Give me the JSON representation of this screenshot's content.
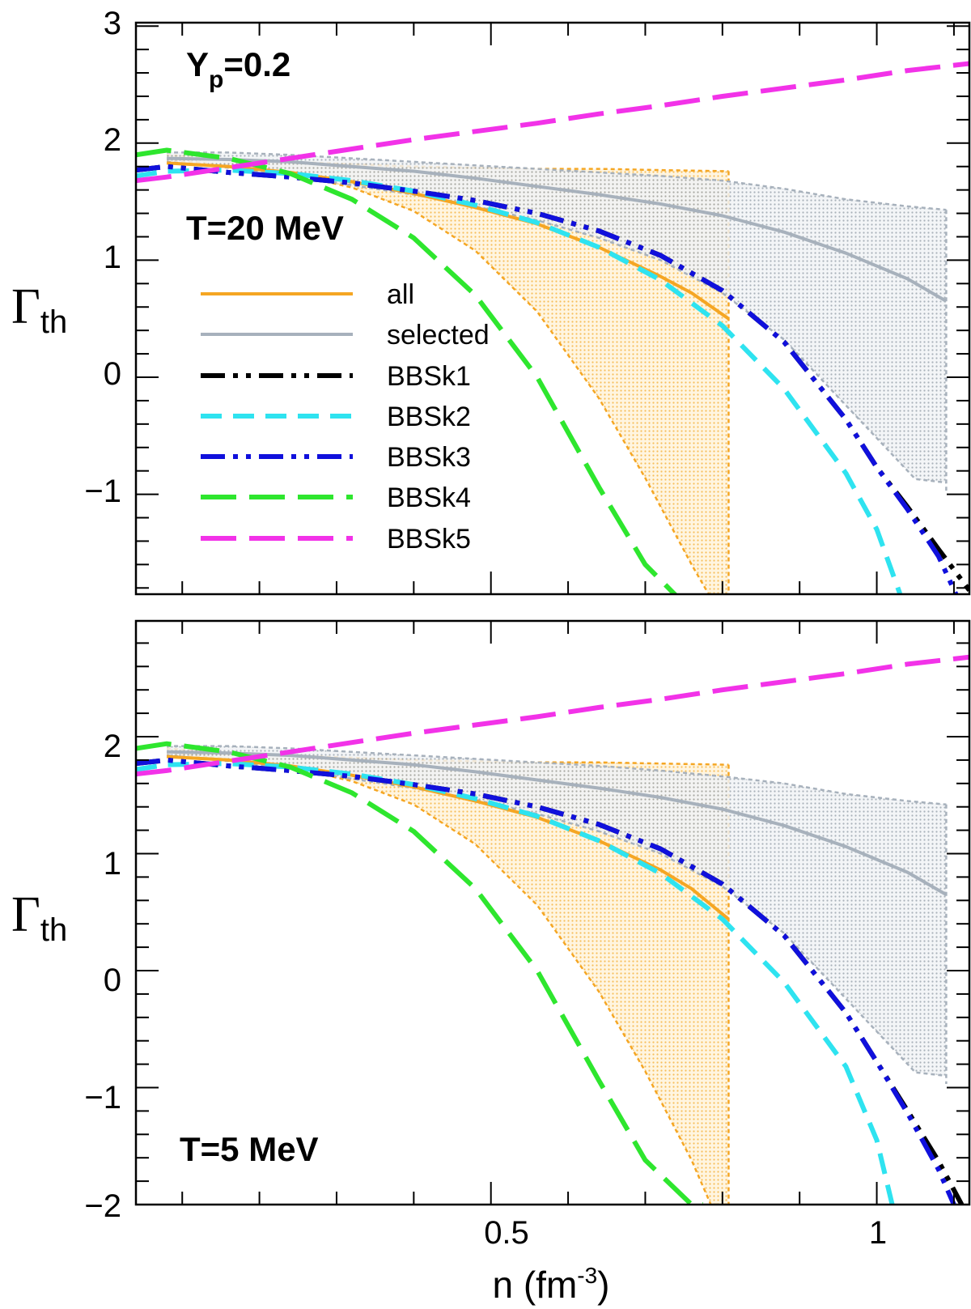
{
  "chart_data": [
    {
      "type": "line",
      "panel": "top",
      "annotations": {
        "yp_main": "Y",
        "yp_sub": "p",
        "yp_value": "=0.2",
        "temperature": "T=20 MeV"
      },
      "ylabel": {
        "main": "Γ",
        "sub": "th"
      },
      "xlabel": "",
      "xlim": [
        0.04,
        1.12
      ],
      "ylim": [
        -2,
        3
      ],
      "yticks": [
        "3",
        "2",
        "1",
        "0",
        "−1"
      ],
      "xticks": [],
      "bands": [
        {
          "name": "all",
          "color": "#f5a623",
          "upper": [
            [
              0.08,
              1.9
            ],
            [
              0.16,
              1.86
            ],
            [
              0.24,
              1.84
            ],
            [
              0.32,
              1.82
            ],
            [
              0.4,
              1.8
            ],
            [
              0.48,
              1.79
            ],
            [
              0.56,
              1.78
            ],
            [
              0.64,
              1.78
            ],
            [
              0.72,
              1.77
            ],
            [
              0.808,
              1.76
            ]
          ],
          "lower": [
            [
              0.08,
              1.86
            ],
            [
              0.16,
              1.81
            ],
            [
              0.24,
              1.74
            ],
            [
              0.32,
              1.62
            ],
            [
              0.4,
              1.42
            ],
            [
              0.48,
              1.08
            ],
            [
              0.56,
              0.56
            ],
            [
              0.64,
              -0.18
            ],
            [
              0.7,
              -0.86
            ],
            [
              0.76,
              -1.6
            ],
            [
              0.795,
              -2.0
            ],
            [
              0.808,
              -2.0
            ]
          ]
        },
        {
          "name": "selected",
          "color": "#a7b1bc",
          "upper": [
            [
              0.08,
              1.92
            ],
            [
              0.16,
              1.92
            ],
            [
              0.24,
              1.9
            ],
            [
              0.32,
              1.87
            ],
            [
              0.4,
              1.84
            ],
            [
              0.48,
              1.81
            ],
            [
              0.56,
              1.78
            ],
            [
              0.64,
              1.75
            ],
            [
              0.72,
              1.72
            ],
            [
              0.8,
              1.68
            ],
            [
              0.88,
              1.61
            ],
            [
              0.96,
              1.52
            ],
            [
              1.04,
              1.46
            ],
            [
              1.09,
              1.43
            ]
          ],
          "lower": [
            [
              0.08,
              1.84
            ],
            [
              0.16,
              1.79
            ],
            [
              0.24,
              1.73
            ],
            [
              0.32,
              1.64
            ],
            [
              0.4,
              1.56
            ],
            [
              0.48,
              1.46
            ],
            [
              0.56,
              1.34
            ],
            [
              0.64,
              1.19
            ],
            [
              0.72,
              1.0
            ],
            [
              0.8,
              0.72
            ],
            [
              0.88,
              0.32
            ],
            [
              0.96,
              -0.24
            ],
            [
              1.02,
              -0.66
            ],
            [
              1.05,
              -0.87
            ],
            [
              1.09,
              -0.9
            ]
          ]
        }
      ],
      "series": [
        {
          "name": "all",
          "color": "#f5a623",
          "style": "solid",
          "x": [
            0.08,
            0.16,
            0.24,
            0.32,
            0.4,
            0.48,
            0.56,
            0.64,
            0.72,
            0.76,
            0.808
          ],
          "y": [
            1.83,
            1.8,
            1.75,
            1.67,
            1.57,
            1.45,
            1.31,
            1.11,
            0.86,
            0.72,
            0.5
          ]
        },
        {
          "name": "selected",
          "color": "#a7b1bc",
          "style": "solid",
          "x": [
            0.08,
            0.16,
            0.24,
            0.32,
            0.4,
            0.48,
            0.56,
            0.64,
            0.72,
            0.8,
            0.88,
            0.96,
            1.04,
            1.09
          ],
          "y": [
            1.87,
            1.86,
            1.84,
            1.8,
            1.76,
            1.7,
            1.63,
            1.56,
            1.48,
            1.38,
            1.24,
            1.06,
            0.84,
            0.65
          ]
        },
        {
          "name": "BBSk1",
          "color": "#000000",
          "style": "dash-dot-dot",
          "x": [
            0.04,
            0.08,
            0.16,
            0.24,
            0.32,
            0.4,
            0.48,
            0.56,
            0.64,
            0.72,
            0.8,
            0.88,
            0.96,
            1.0,
            1.04,
            1.08,
            1.12
          ],
          "y": [
            1.77,
            1.8,
            1.75,
            1.71,
            1.66,
            1.59,
            1.51,
            1.4,
            1.25,
            1.04,
            0.74,
            0.3,
            -0.36,
            -0.77,
            -1.11,
            -1.47,
            -1.82
          ]
        },
        {
          "name": "BBSk2",
          "color": "#2ee3f0",
          "style": "dashed",
          "x": [
            0.04,
            0.08,
            0.16,
            0.24,
            0.32,
            0.4,
            0.48,
            0.56,
            0.64,
            0.72,
            0.8,
            0.88,
            0.96,
            1.0,
            1.03
          ],
          "y": [
            1.72,
            1.76,
            1.77,
            1.74,
            1.68,
            1.59,
            1.47,
            1.32,
            1.11,
            0.83,
            0.44,
            -0.1,
            -0.82,
            -1.3,
            -1.85
          ]
        },
        {
          "name": "BBSk3",
          "color": "#1010dc",
          "style": "dash-dot-dot",
          "x": [
            0.04,
            0.08,
            0.16,
            0.24,
            0.32,
            0.4,
            0.48,
            0.56,
            0.64,
            0.72,
            0.8,
            0.88,
            0.96,
            1.0,
            1.04,
            1.08,
            1.11
          ],
          "y": [
            1.77,
            1.8,
            1.75,
            1.71,
            1.66,
            1.59,
            1.51,
            1.4,
            1.25,
            1.04,
            0.74,
            0.3,
            -0.36,
            -0.77,
            -1.13,
            -1.53,
            -1.96
          ]
        },
        {
          "name": "BBSk4",
          "color": "#2ee62e",
          "style": "long-dash",
          "x": [
            0.04,
            0.08,
            0.16,
            0.24,
            0.32,
            0.4,
            0.48,
            0.56,
            0.64,
            0.7,
            0.76,
            0.782
          ],
          "y": [
            1.9,
            1.94,
            1.87,
            1.74,
            1.52,
            1.19,
            0.7,
            0.0,
            -0.94,
            -1.6,
            -2.0,
            -2.0
          ]
        },
        {
          "name": "BBSk5",
          "color": "#f232e8",
          "style": "long-dash",
          "x": [
            0.04,
            0.08,
            0.16,
            0.24,
            0.32,
            0.4,
            0.48,
            0.56,
            0.64,
            0.72,
            0.8,
            0.88,
            0.96,
            1.04,
            1.12
          ],
          "y": [
            1.68,
            1.71,
            1.79,
            1.87,
            1.95,
            2.03,
            2.1,
            2.17,
            2.25,
            2.32,
            2.4,
            2.47,
            2.54,
            2.62,
            2.68
          ]
        }
      ]
    },
    {
      "type": "line",
      "panel": "bottom",
      "annotations": {
        "temperature": "T=5 MeV"
      },
      "ylabel": {
        "main": "Γ",
        "sub": "th"
      },
      "xlabel": {
        "main": "n (fm",
        "sup": "-3",
        "close": ")"
      },
      "xlim": [
        0.04,
        1.12
      ],
      "ylim": [
        -2,
        3
      ],
      "yticks": [
        "2",
        "1",
        "0",
        "−1",
        "−2"
      ],
      "xticks": [
        "0.5",
        "1"
      ],
      "bands": [
        {
          "name": "all",
          "color": "#f5a623",
          "upper": [
            [
              0.08,
              1.9
            ],
            [
              0.16,
              1.86
            ],
            [
              0.24,
              1.84
            ],
            [
              0.32,
              1.82
            ],
            [
              0.4,
              1.8
            ],
            [
              0.48,
              1.79
            ],
            [
              0.56,
              1.78
            ],
            [
              0.64,
              1.78
            ],
            [
              0.72,
              1.77
            ],
            [
              0.808,
              1.76
            ]
          ],
          "lower": [
            [
              0.08,
              1.86
            ],
            [
              0.16,
              1.81
            ],
            [
              0.24,
              1.74
            ],
            [
              0.32,
              1.62
            ],
            [
              0.4,
              1.42
            ],
            [
              0.48,
              1.08
            ],
            [
              0.56,
              0.56
            ],
            [
              0.64,
              -0.18
            ],
            [
              0.7,
              -0.86
            ],
            [
              0.76,
              -1.62
            ],
            [
              0.785,
              -2.0
            ],
            [
              0.808,
              -2.0
            ]
          ]
        },
        {
          "name": "selected",
          "color": "#a7b1bc",
          "upper": [
            [
              0.08,
              1.92
            ],
            [
              0.16,
              1.92
            ],
            [
              0.24,
              1.9
            ],
            [
              0.32,
              1.87
            ],
            [
              0.4,
              1.84
            ],
            [
              0.48,
              1.81
            ],
            [
              0.56,
              1.78
            ],
            [
              0.64,
              1.75
            ],
            [
              0.72,
              1.71
            ],
            [
              0.8,
              1.66
            ],
            [
              0.88,
              1.6
            ],
            [
              0.96,
              1.51
            ],
            [
              1.04,
              1.45
            ],
            [
              1.09,
              1.42
            ]
          ],
          "lower": [
            [
              0.08,
              1.84
            ],
            [
              0.16,
              1.79
            ],
            [
              0.24,
              1.73
            ],
            [
              0.32,
              1.64
            ],
            [
              0.4,
              1.56
            ],
            [
              0.48,
              1.46
            ],
            [
              0.56,
              1.34
            ],
            [
              0.64,
              1.19
            ],
            [
              0.72,
              1.0
            ],
            [
              0.8,
              0.72
            ],
            [
              0.88,
              0.32
            ],
            [
              0.96,
              -0.24
            ],
            [
              1.02,
              -0.66
            ],
            [
              1.05,
              -0.87
            ],
            [
              1.09,
              -0.9
            ]
          ]
        }
      ],
      "series": [
        {
          "name": "all",
          "color": "#f5a623",
          "style": "solid",
          "x": [
            0.08,
            0.16,
            0.24,
            0.32,
            0.4,
            0.48,
            0.56,
            0.64,
            0.72,
            0.76,
            0.808
          ],
          "y": [
            1.83,
            1.8,
            1.75,
            1.67,
            1.57,
            1.45,
            1.31,
            1.11,
            0.86,
            0.7,
            0.44
          ]
        },
        {
          "name": "selected",
          "color": "#a7b1bc",
          "style": "solid",
          "x": [
            0.08,
            0.16,
            0.24,
            0.32,
            0.4,
            0.48,
            0.56,
            0.64,
            0.72,
            0.8,
            0.88,
            0.96,
            1.04,
            1.09
          ],
          "y": [
            1.87,
            1.86,
            1.84,
            1.8,
            1.76,
            1.7,
            1.63,
            1.56,
            1.48,
            1.38,
            1.24,
            1.06,
            0.84,
            0.65
          ]
        },
        {
          "name": "BBSk1",
          "color": "#000000",
          "style": "dash-dot-dot",
          "x": [
            0.04,
            0.08,
            0.16,
            0.24,
            0.32,
            0.4,
            0.48,
            0.56,
            0.64,
            0.72,
            0.8,
            0.88,
            0.96,
            1.0,
            1.04,
            1.08,
            1.11
          ],
          "y": [
            1.77,
            1.8,
            1.75,
            1.71,
            1.66,
            1.59,
            1.51,
            1.4,
            1.25,
            1.04,
            0.74,
            0.3,
            -0.36,
            -0.78,
            -1.2,
            -1.63,
            -2.0
          ]
        },
        {
          "name": "BBSk2",
          "color": "#2ee3f0",
          "style": "dashed",
          "x": [
            0.04,
            0.08,
            0.16,
            0.24,
            0.32,
            0.4,
            0.48,
            0.56,
            0.64,
            0.72,
            0.8,
            0.88,
            0.96,
            1.0,
            1.02
          ],
          "y": [
            1.72,
            1.76,
            1.77,
            1.74,
            1.68,
            1.59,
            1.47,
            1.32,
            1.11,
            0.83,
            0.44,
            -0.1,
            -0.82,
            -1.45,
            -2.0
          ]
        },
        {
          "name": "BBSk3",
          "color": "#1010dc",
          "style": "dash-dot-dot",
          "x": [
            0.04,
            0.08,
            0.16,
            0.24,
            0.32,
            0.4,
            0.48,
            0.56,
            0.64,
            0.72,
            0.8,
            0.88,
            0.96,
            1.0,
            1.04,
            1.08,
            1.1
          ],
          "y": [
            1.77,
            1.8,
            1.75,
            1.71,
            1.66,
            1.59,
            1.51,
            1.4,
            1.25,
            1.04,
            0.74,
            0.3,
            -0.36,
            -0.78,
            -1.22,
            -1.7,
            -2.0
          ]
        },
        {
          "name": "BBSk4",
          "color": "#2ee62e",
          "style": "long-dash",
          "x": [
            0.04,
            0.08,
            0.16,
            0.24,
            0.32,
            0.4,
            0.48,
            0.56,
            0.64,
            0.7,
            0.76,
            0.775
          ],
          "y": [
            1.9,
            1.94,
            1.87,
            1.74,
            1.52,
            1.19,
            0.7,
            0.0,
            -0.94,
            -1.62,
            -2.0,
            -2.0
          ]
        },
        {
          "name": "BBSk5",
          "color": "#f232e8",
          "style": "long-dash",
          "x": [
            0.04,
            0.08,
            0.16,
            0.24,
            0.32,
            0.4,
            0.48,
            0.56,
            0.64,
            0.72,
            0.8,
            0.88,
            0.96,
            1.04,
            1.12
          ],
          "y": [
            1.68,
            1.71,
            1.79,
            1.87,
            1.95,
            2.03,
            2.1,
            2.17,
            2.25,
            2.32,
            2.4,
            2.47,
            2.54,
            2.62,
            2.68
          ]
        }
      ]
    }
  ],
  "legend": {
    "placement": "left-middle of top panel",
    "items": [
      {
        "label": "all",
        "color": "#f5a623",
        "style": "solid"
      },
      {
        "label": "selected",
        "color": "#a7b1bc",
        "style": "solid"
      },
      {
        "label": "BBSk1",
        "color": "#000000",
        "style": "dash-dot-dot"
      },
      {
        "label": "BBSk2",
        "color": "#2ee3f0",
        "style": "dashed"
      },
      {
        "label": "BBSk3",
        "color": "#1010dc",
        "style": "dash-dot-dot"
      },
      {
        "label": "BBSk4",
        "color": "#2ee62e",
        "style": "long-dash"
      },
      {
        "label": "BBSk5",
        "color": "#f232e8",
        "style": "long-dash"
      }
    ]
  }
}
